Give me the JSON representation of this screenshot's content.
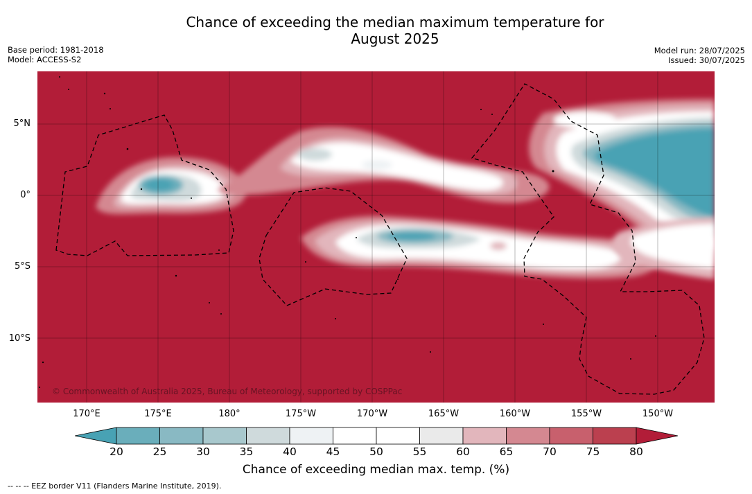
{
  "title": {
    "line1": "Chance of exceeding the median maximum temperature for",
    "line2": "August 2025"
  },
  "meta_left": {
    "base_period": "Base period: 1981-2018",
    "model": "Model: ACCESS-S2"
  },
  "meta_right": {
    "model_run": "Model run: 28/07/2025",
    "issued": "Issued: 30/07/2025"
  },
  "copyright": "© Commonwealth of Australia 2025, Bureau of Meteorology, supported by COSPPac",
  "map": {
    "lat_labels": [
      "5°N",
      "0°",
      "5°S",
      "10°S"
    ],
    "lon_labels": [
      "170°E",
      "175°E",
      "180°",
      "175°W",
      "170°W",
      "165°W",
      "160°W",
      "155°W",
      "150°W"
    ]
  },
  "colorbar": {
    "ticks": [
      "20",
      "25",
      "30",
      "35",
      "40",
      "45",
      "50",
      "55",
      "60",
      "65",
      "70",
      "75",
      "80"
    ],
    "bins": [
      {
        "range": "20-25",
        "color": "#6aaebb"
      },
      {
        "range": "25-30",
        "color": "#89b9c3"
      },
      {
        "range": "30-35",
        "color": "#a8c8cd"
      },
      {
        "range": "35-40",
        "color": "#cfdadc"
      },
      {
        "range": "40-45",
        "color": "#eef2f4"
      },
      {
        "range": "45-50",
        "color": "#ffffff"
      },
      {
        "range": "50-55",
        "color": "#ffffff"
      },
      {
        "range": "55-60",
        "color": "#eaeaea"
      },
      {
        "range": "60-65",
        "color": "#e2b6bc"
      },
      {
        "range": "65-70",
        "color": "#d48891"
      },
      {
        "range": "70-75",
        "color": "#c8606d"
      },
      {
        "range": "75-80",
        "color": "#bb404f"
      }
    ],
    "below_color": "#48a2b4",
    "above_color": "#b21d38",
    "label": "Chance of exceeding median max. temp. (%)"
  },
  "footer": "--  --  -- EEZ border V11 (Flanders Marine Institute, 2019)."
}
